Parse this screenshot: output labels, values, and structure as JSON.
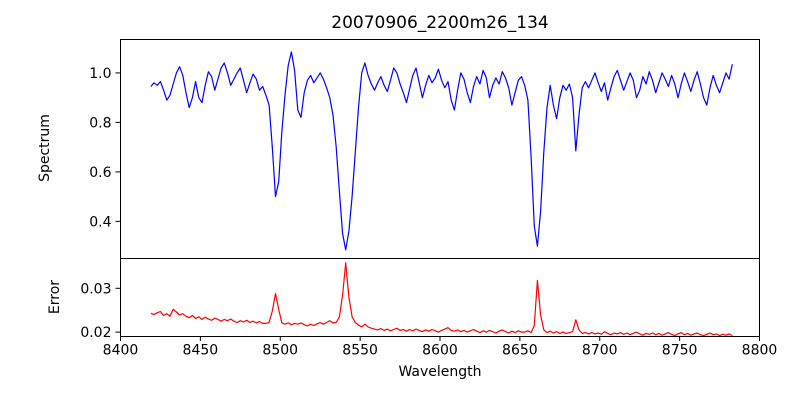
{
  "chart_data": {
    "type": "line",
    "title": "20070906_2200m26_134",
    "xlabel": "Wavelength",
    "x_range": [
      8400,
      8800
    ],
    "x_ticks": [
      "8400",
      "8450",
      "8500",
      "8550",
      "8600",
      "8650",
      "8700",
      "8750",
      "8800"
    ],
    "x_start": 8419,
    "x_step": 2,
    "grid": false,
    "legend": "none",
    "panels": [
      {
        "name": "spectrum",
        "ylabel": "Spectrum",
        "ylim": [
          0.25,
          1.135
        ],
        "y_ticks": [
          "0.4",
          "0.6",
          "0.8",
          "1.0"
        ],
        "line_color": "#0000ff",
        "absorption_line_centers_wavelength": [
          8497,
          8541,
          8661,
          8685
        ],
        "absorption_line_depths": [
          0.5,
          0.285,
          0.3,
          0.685
        ]
      },
      {
        "name": "error",
        "ylabel": "Error",
        "ylim": [
          0.019,
          0.0368
        ],
        "y_ticks": [
          "0.02",
          "0.03"
        ],
        "line_color": "#ff0000",
        "spike_centers_wavelength": [
          8497,
          8541,
          8661,
          8685
        ],
        "spike_peaks": [
          0.0288,
          0.0358,
          0.0318,
          0.0228
        ]
      }
    ],
    "series": [
      {
        "name": "Spectrum",
        "values": [
          0.945,
          0.96,
          0.95,
          0.965,
          0.93,
          0.89,
          0.91,
          0.955,
          1.0,
          1.025,
          0.99,
          0.92,
          0.86,
          0.9,
          0.965,
          0.9,
          0.88,
          0.95,
          1.005,
          0.985,
          0.93,
          0.975,
          1.02,
          1.04,
          1.0,
          0.95,
          0.975,
          1.0,
          1.02,
          0.97,
          0.92,
          0.96,
          0.995,
          0.975,
          0.93,
          0.945,
          0.91,
          0.87,
          0.7,
          0.5,
          0.56,
          0.76,
          0.91,
          1.03,
          1.085,
          1.01,
          0.85,
          0.82,
          0.92,
          0.97,
          0.99,
          0.96,
          0.98,
          1.0,
          0.975,
          0.94,
          0.9,
          0.83,
          0.7,
          0.52,
          0.35,
          0.285,
          0.36,
          0.5,
          0.68,
          0.86,
          1.0,
          1.04,
          0.99,
          0.955,
          0.93,
          0.96,
          0.985,
          0.95,
          0.925,
          0.97,
          1.02,
          1.0,
          0.955,
          0.92,
          0.88,
          0.935,
          0.99,
          1.02,
          0.96,
          0.9,
          0.95,
          0.99,
          0.96,
          0.98,
          1.015,
          0.97,
          0.94,
          0.965,
          0.89,
          0.85,
          0.93,
          1.0,
          0.975,
          0.92,
          0.88,
          0.945,
          0.985,
          0.955,
          1.01,
          0.98,
          0.9,
          0.95,
          0.98,
          0.955,
          1.005,
          0.98,
          0.94,
          0.87,
          0.92,
          0.97,
          0.985,
          0.95,
          0.89,
          0.66,
          0.38,
          0.3,
          0.44,
          0.68,
          0.86,
          0.95,
          0.87,
          0.815,
          0.9,
          0.95,
          0.93,
          0.955,
          0.9,
          0.685,
          0.83,
          0.94,
          0.965,
          0.94,
          0.97,
          1.0,
          0.96,
          0.925,
          0.96,
          0.89,
          0.94,
          0.985,
          1.01,
          0.97,
          0.93,
          0.965,
          1.0,
          0.97,
          0.9,
          0.93,
          0.985,
          0.955,
          1.005,
          0.97,
          0.92,
          0.96,
          1.0,
          0.975,
          0.945,
          0.99,
          0.955,
          0.9,
          0.955,
          1.0,
          0.965,
          0.925,
          0.97,
          1.005,
          0.955,
          0.9,
          0.87,
          0.94,
          0.99,
          0.95,
          0.92,
          0.96,
          1.0,
          0.975,
          1.035
        ]
      },
      {
        "name": "Error",
        "values": [
          0.0243,
          0.024,
          0.0244,
          0.0247,
          0.0238,
          0.0242,
          0.0236,
          0.0252,
          0.0246,
          0.0239,
          0.0242,
          0.0236,
          0.0233,
          0.0238,
          0.0231,
          0.0235,
          0.0229,
          0.0234,
          0.023,
          0.0227,
          0.0232,
          0.0229,
          0.0225,
          0.0229,
          0.0226,
          0.023,
          0.0225,
          0.0222,
          0.0226,
          0.0223,
          0.0227,
          0.0222,
          0.0225,
          0.0221,
          0.0224,
          0.022,
          0.022,
          0.0222,
          0.0248,
          0.0288,
          0.0252,
          0.0221,
          0.0218,
          0.0221,
          0.0217,
          0.022,
          0.0218,
          0.0221,
          0.0217,
          0.0214,
          0.0218,
          0.0215,
          0.0219,
          0.0222,
          0.0218,
          0.0222,
          0.0226,
          0.0221,
          0.0222,
          0.0235,
          0.0285,
          0.0358,
          0.028,
          0.0235,
          0.0222,
          0.0216,
          0.0212,
          0.0218,
          0.0212,
          0.0209,
          0.0207,
          0.0205,
          0.0208,
          0.0204,
          0.0207,
          0.0203,
          0.0206,
          0.0209,
          0.0204,
          0.0206,
          0.0202,
          0.0206,
          0.0203,
          0.0207,
          0.0204,
          0.0201,
          0.0205,
          0.0202,
          0.0206,
          0.0203,
          0.02,
          0.0204,
          0.0207,
          0.021,
          0.0204,
          0.0202,
          0.0205,
          0.0201,
          0.0204,
          0.02,
          0.0203,
          0.0206,
          0.0202,
          0.0199,
          0.0203,
          0.02,
          0.0204,
          0.0201,
          0.0198,
          0.0202,
          0.0205,
          0.0201,
          0.0198,
          0.0202,
          0.0199,
          0.0203,
          0.02,
          0.02,
          0.0203,
          0.0199,
          0.0215,
          0.0318,
          0.024,
          0.0205,
          0.0199,
          0.0202,
          0.0198,
          0.0201,
          0.0197,
          0.02,
          0.0197,
          0.0199,
          0.0201,
          0.0228,
          0.0205,
          0.0197,
          0.0199,
          0.0196,
          0.0199,
          0.0196,
          0.0198,
          0.0195,
          0.0201,
          0.0197,
          0.0194,
          0.0198,
          0.0196,
          0.0199,
          0.0195,
          0.0198,
          0.0194,
          0.0197,
          0.02,
          0.0196,
          0.0193,
          0.0197,
          0.0195,
          0.0198,
          0.0194,
          0.0197,
          0.0193,
          0.0196,
          0.0199,
          0.0195,
          0.0192,
          0.0196,
          0.0199,
          0.0194,
          0.0197,
          0.0193,
          0.0196,
          0.0198,
          0.0194,
          0.0192,
          0.0195,
          0.0198,
          0.0194,
          0.0196,
          0.0192,
          0.0195,
          0.0193,
          0.0196,
          0.0192
        ]
      }
    ]
  }
}
